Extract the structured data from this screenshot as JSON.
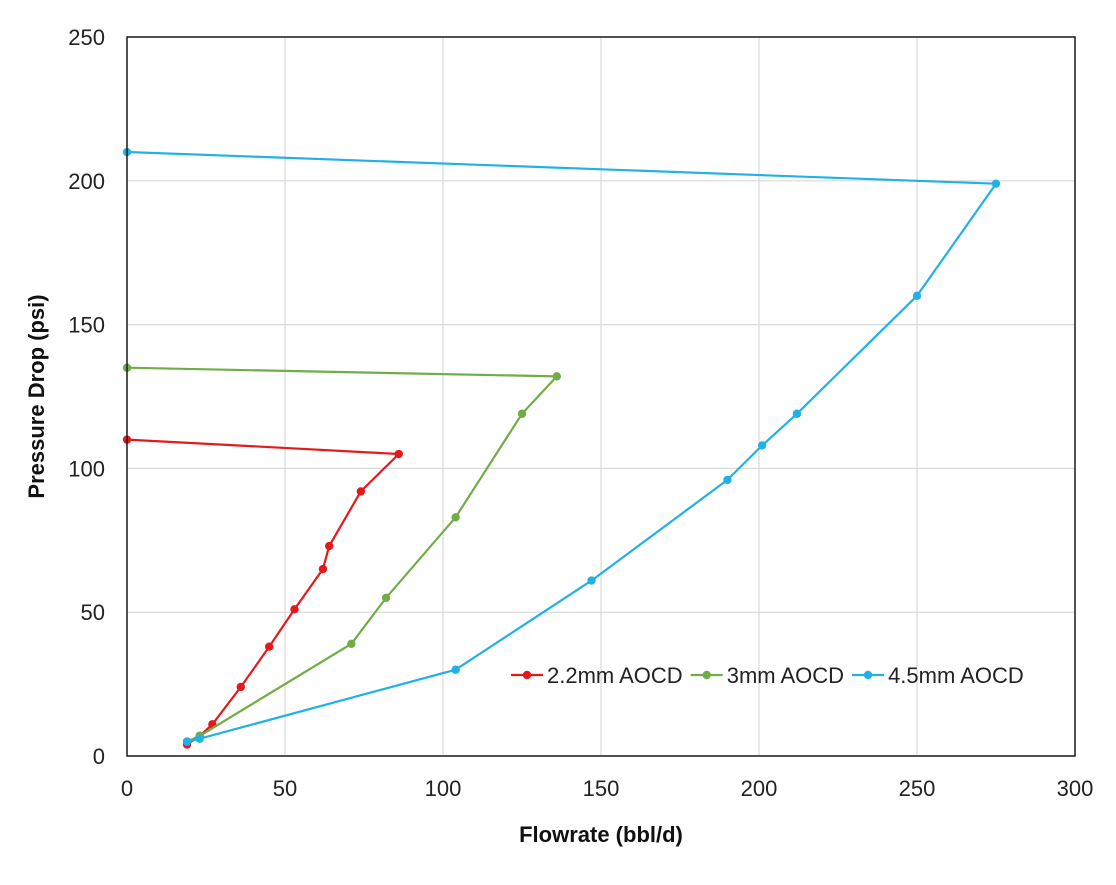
{
  "chart_data": {
    "type": "line",
    "title": "",
    "xlabel": "Flowrate (bbl/d)",
    "ylabel": "Pressure Drop (psi)",
    "xlim": [
      0,
      300
    ],
    "ylim": [
      0,
      250
    ],
    "xticks": [
      0,
      50,
      100,
      150,
      200,
      250,
      300
    ],
    "yticks": [
      0,
      50,
      100,
      150,
      200,
      250
    ],
    "grid": true,
    "legend_position": "bottom-right",
    "series": [
      {
        "name": "2.2mm AOCD",
        "color": "#e31a1c",
        "points": [
          [
            19,
            4
          ],
          [
            23,
            7
          ],
          [
            27,
            11
          ],
          [
            36,
            24
          ],
          [
            45,
            38
          ],
          [
            53,
            51
          ],
          [
            62,
            65
          ],
          [
            64,
            73
          ],
          [
            74,
            92
          ],
          [
            86,
            105
          ],
          [
            0,
            110
          ]
        ]
      },
      {
        "name": "3mm AOCD",
        "color": "#70ad47",
        "points": [
          [
            19,
            5
          ],
          [
            23,
            7
          ],
          [
            71,
            39
          ],
          [
            82,
            55
          ],
          [
            104,
            83
          ],
          [
            125,
            119
          ],
          [
            136,
            132
          ],
          [
            0,
            135
          ]
        ]
      },
      {
        "name": "4.5mm AOCD",
        "color": "#21b1e6",
        "points": [
          [
            19,
            5
          ],
          [
            23,
            6
          ],
          [
            104,
            30
          ],
          [
            147,
            61
          ],
          [
            190,
            96
          ],
          [
            201,
            108
          ],
          [
            212,
            119
          ],
          [
            250,
            160
          ],
          [
            275,
            199
          ],
          [
            0,
            210
          ]
        ]
      }
    ]
  }
}
